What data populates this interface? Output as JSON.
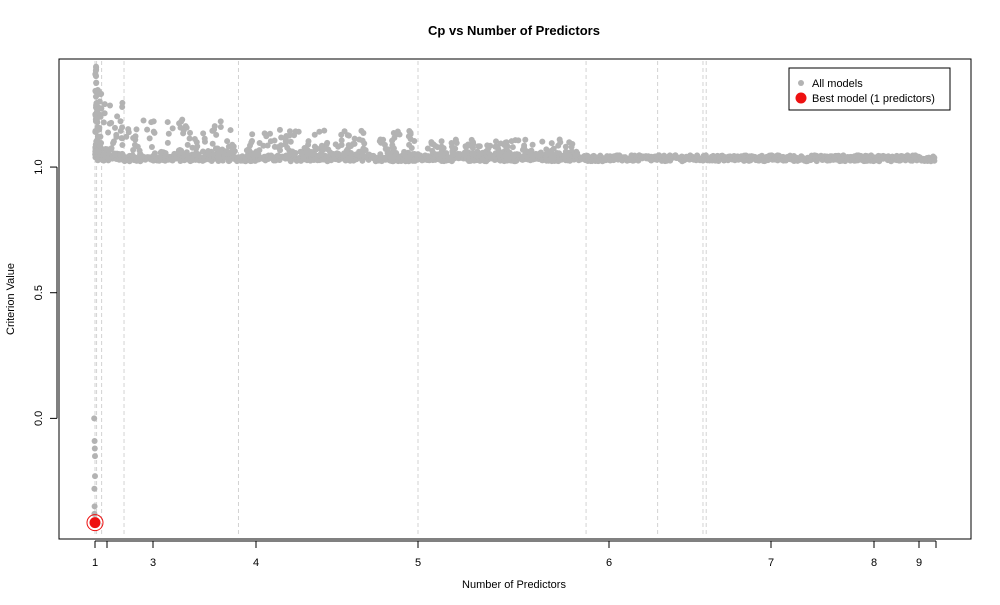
{
  "chart_data": {
    "type": "scatter",
    "title": "Cp vs Number of Predictors",
    "xlabel": "Number of Predictors",
    "ylabel": "Criterion Value",
    "xlim": [
      0.94,
      10.0
    ],
    "ylim": [
      -0.48,
      1.43
    ],
    "x_ticks": [
      1,
      2,
      3,
      4,
      5,
      6,
      7,
      8,
      9,
      10
    ],
    "x_tick_labels": [
      "1",
      "",
      "3",
      "4",
      "5",
      "6",
      "7",
      "8",
      "9",
      ""
    ],
    "y_ticks": [
      0.0,
      0.5,
      1.0
    ],
    "y_tick_labels": [
      "0.0",
      "0.5",
      "1.0"
    ],
    "group_boundaries": [
      1,
      1.13,
      1.55,
      2.37,
      3.83,
      5.0,
      5.88,
      6.3,
      6.58,
      6.6
    ],
    "grid": "dashed vertical lines at group boundaries",
    "legend": {
      "position": "top-right",
      "entries": [
        {
          "label": "All models",
          "color": "#b3b3b3"
        },
        {
          "label": "Best model (1 predictors)",
          "color": "#ee1111"
        }
      ]
    },
    "series": [
      {
        "name": "All models",
        "color": "#b3b3b3",
        "points": [
          {
            "x": 0.98,
            "y": 0.0
          },
          {
            "x": 0.99,
            "y": -0.09
          },
          {
            "x": 0.995,
            "y": -0.12
          },
          {
            "x": 1.0,
            "y": -0.15
          },
          {
            "x": 1.0,
            "y": -0.23
          },
          {
            "x": 0.985,
            "y": -0.28
          },
          {
            "x": 0.99,
            "y": -0.35
          },
          {
            "x": 0.985,
            "y": -0.38
          }
        ],
        "band": {
          "x_start": 1.0,
          "x_end": 10.0,
          "y_center": 1.035,
          "y_spread": 0.012
        },
        "clusters": [
          {
            "x_start": 1.02,
            "x_end": 1.12,
            "y_min": 1.05,
            "y_max": 1.4
          },
          {
            "x_start": 1.15,
            "x_end": 1.55,
            "y_min": 1.05,
            "y_max": 1.33
          },
          {
            "x_start": 1.6,
            "x_end": 2.35,
            "y_min": 1.05,
            "y_max": 1.26
          },
          {
            "x_start": 2.4,
            "x_end": 3.8,
            "y_min": 1.05,
            "y_max": 1.19
          },
          {
            "x_start": 3.9,
            "x_end": 5.0,
            "y_min": 1.05,
            "y_max": 1.15
          },
          {
            "x_start": 5.05,
            "x_end": 5.85,
            "y_min": 1.05,
            "y_max": 1.11
          }
        ]
      },
      {
        "name": "Best model (1 predictors)",
        "color": "#ee1111",
        "points": [
          {
            "x": 1.0,
            "y": -0.415
          }
        ]
      }
    ]
  }
}
